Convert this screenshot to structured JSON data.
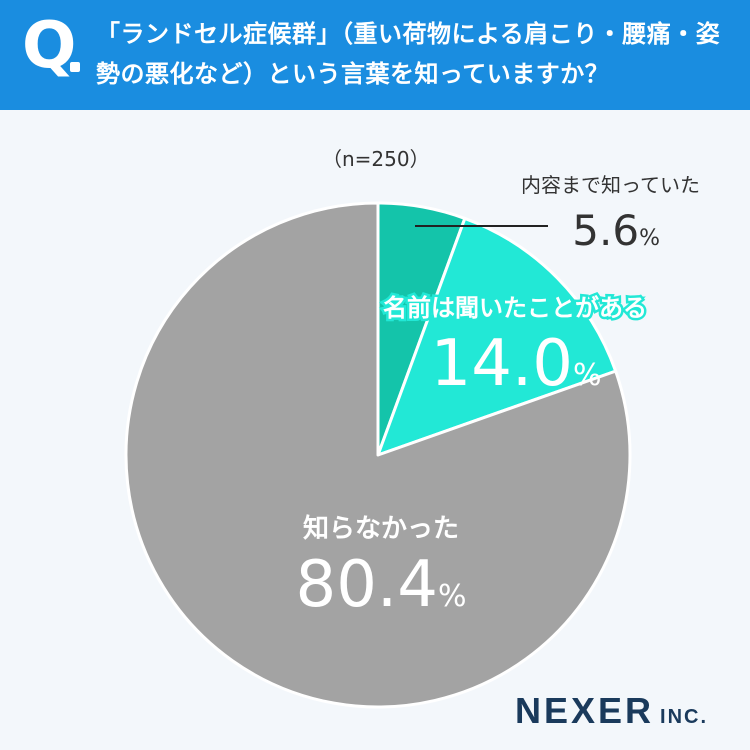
{
  "header": {
    "q_mark": "Q",
    "question": "「ランドセル症候群」（重い荷物による肩こり・腰痛・姿勢の悪化など）という言葉を知っていますか？"
  },
  "sample_label": "（n=250）",
  "logo": {
    "main": "NEXER",
    "sub": "INC."
  },
  "colors": {
    "header_bg": "#1a8de0",
    "slice_known": "#14c4aa",
    "slice_heard": "#22e8d6",
    "slice_unknown": "#a3a3a3"
  },
  "chart_data": {
    "type": "pie",
    "title": "「ランドセル症候群」（重い荷物による肩こり・腰痛・姿勢の悪化など）という言葉を知っていますか？",
    "slices": [
      {
        "label": "内容まで知っていた",
        "value": 5.6,
        "display": "5.6",
        "unit": "%",
        "color": "#14c4aa"
      },
      {
        "label": "名前は聞いたことがある",
        "value": 14.0,
        "display": "14.0",
        "unit": "%",
        "color": "#22e8d6"
      },
      {
        "label": "知らなかった",
        "value": 80.4,
        "display": "80.4",
        "unit": "%",
        "color": "#a3a3a3"
      }
    ]
  }
}
